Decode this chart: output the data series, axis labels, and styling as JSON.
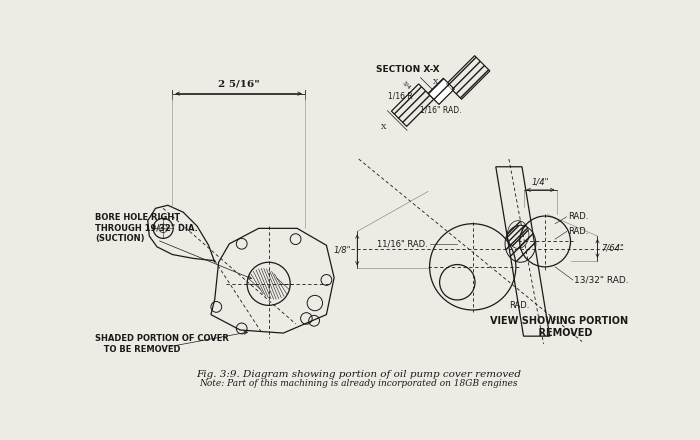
{
  "bg_color": "#eeebe4",
  "line_color": "#1a1a1a",
  "title_text": "Fig. 3:9. Diagram showing portion of oil pump cover removed",
  "note_text": "Note: Part of this machining is already incorporated on 18GB engines",
  "label_bore": "BORE HOLE RIGHT\nTHROUGH 19/32\" DIA.\n(SUCTION)",
  "label_shaded": "SHADED PORTION OF COVER\n   TO BE REMOVED",
  "label_section": "SECTION X-X",
  "label_view": "VIEW SHOWING PORTION\n    REMOVED",
  "label_dim1": "2 5/16\"",
  "label_116R": "1/16 R",
  "label_116rad": "1/16\" RAD.",
  "label_1116rad": "11/16\" RAD.",
  "label_quarter": "1/4\"",
  "label_rad1": "RAD.",
  "label_rad2": "RAD.",
  "label_rad3": "RAD.",
  "label_1332rad": "13/32\" RAD.",
  "label_eighth": "1/8\"",
  "label_764": "7/64\""
}
